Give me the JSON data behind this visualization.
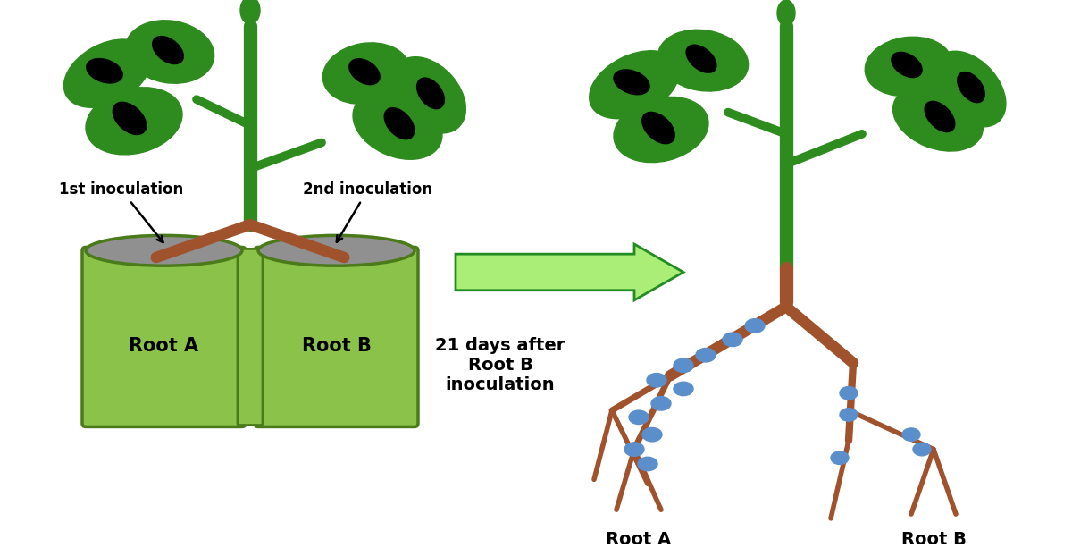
{
  "bg_color": "#ffffff",
  "leaf_green": "#2E8B1E",
  "stem_green": "#2E8B1E",
  "stem_brown": "#8B4513",
  "root_brown": "#A0522D",
  "pot_green": "#8BC34A",
  "pot_outline": "#4A7A1A",
  "pot_gray_top": "#909090",
  "nodule_blue": "#5B8FCC",
  "arrow_fill": "#AAEE77",
  "arrow_outline": "#228B22",
  "label_1st": "1st inoculation",
  "label_2nd": "2nd inoculation",
  "label_root_a_left": "Root A",
  "label_root_b_left": "Root B",
  "label_days": "21 days after\nRoot B\ninoculation",
  "label_root_a_right": "Root A",
  "label_root_b_right": "Root B",
  "figsize": [
    12.0,
    6.13
  ],
  "dpi": 100
}
